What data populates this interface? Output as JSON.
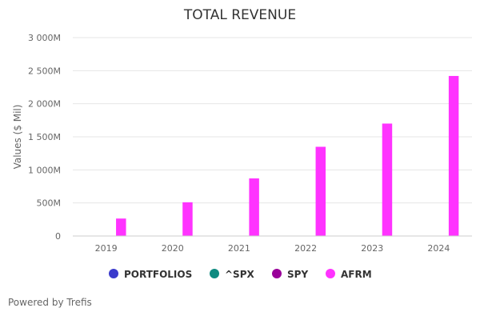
{
  "chart_data": {
    "type": "bar",
    "title": "TOTAL REVENUE",
    "ylabel": "Values ($ Mil)",
    "xlabel": "",
    "categories": [
      "2019",
      "2020",
      "2021",
      "2022",
      "2023",
      "2024"
    ],
    "ylim": [
      0,
      3000
    ],
    "yticks": [
      {
        "value": 0,
        "label": "0"
      },
      {
        "value": 500,
        "label": "500M"
      },
      {
        "value": 1000,
        "label": "1 000M"
      },
      {
        "value": 1500,
        "label": "1 500M"
      },
      {
        "value": 2000,
        "label": "2 000M"
      },
      {
        "value": 2500,
        "label": "2 500M"
      },
      {
        "value": 3000,
        "label": "3 000M"
      }
    ],
    "grid": true,
    "legend_position": "bottom",
    "series": [
      {
        "name": "PORTFOLIOS",
        "color": "#3b3bcc",
        "values": [
          null,
          null,
          null,
          null,
          null,
          null
        ]
      },
      {
        "name": "^SPX",
        "color": "#0e8a80",
        "values": [
          null,
          null,
          null,
          null,
          null,
          null
        ]
      },
      {
        "name": "SPY",
        "color": "#990099",
        "values": [
          null,
          null,
          null,
          null,
          null,
          null
        ]
      },
      {
        "name": "AFRM",
        "color": "#ff33ff",
        "values": [
          264,
          510,
          871,
          1349,
          1700,
          2420
        ]
      }
    ]
  },
  "footer": {
    "text": "Powered by Trefis"
  }
}
